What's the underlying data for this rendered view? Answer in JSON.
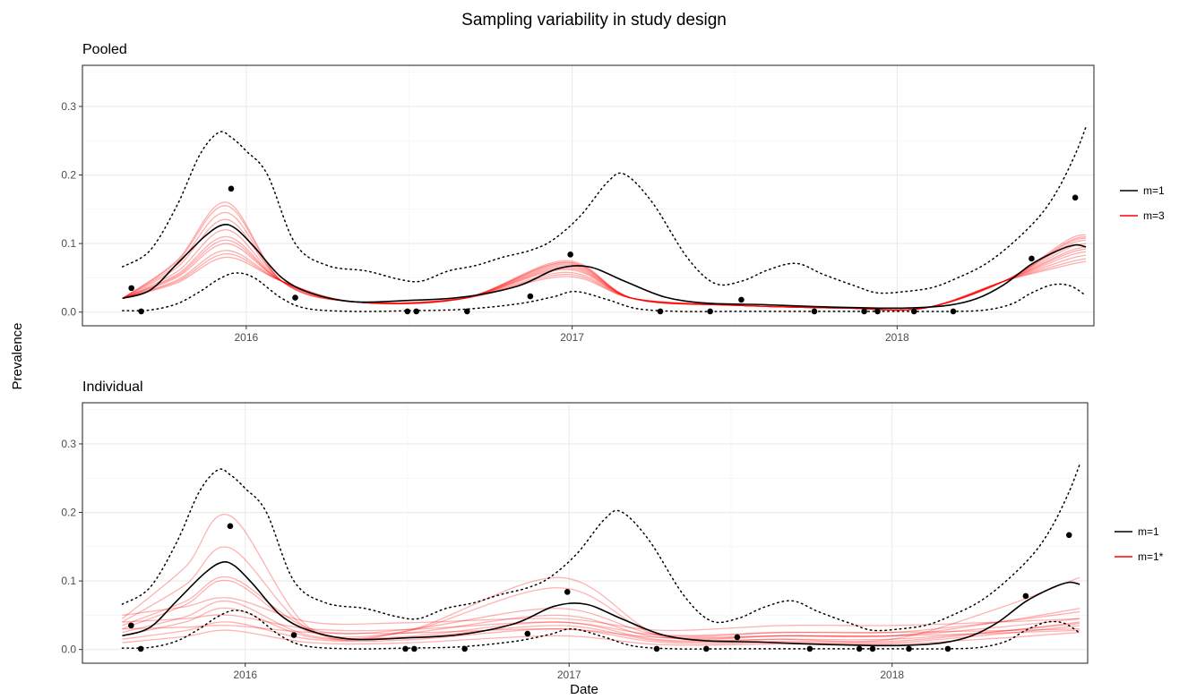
{
  "title": "Sampling variability in study design",
  "ylabel": "Prevalence",
  "xlabel": "Date",
  "colors": {
    "black": "#000000",
    "red": "#ff0000",
    "grid": "#ebebeb"
  },
  "chart_data": [
    {
      "type": "line",
      "panel": "Pooled",
      "xlim": [
        "2015-07-01",
        "2018-08-10"
      ],
      "ylim": [
        -0.02,
        0.36
      ],
      "x_ticks": [
        "2016-01-01",
        "2017-01-01",
        "2018-01-01"
      ],
      "x_tick_labels": [
        "2016",
        "2017",
        "2018"
      ],
      "y_ticks": [
        0.0,
        0.1,
        0.2,
        0.3
      ],
      "y_tick_labels": [
        "0.0",
        "0.1",
        "0.2",
        "0.3"
      ],
      "grid": true,
      "legend": {
        "position": "right",
        "entries": [
          {
            "label": "m=1",
            "color": "#000000"
          },
          {
            "label": "m=3",
            "color": "#ff0000"
          }
        ]
      },
      "points": {
        "x": [
          "2015-08-25",
          "2015-09-05",
          "2015-12-15",
          "2016-02-25",
          "2016-06-30",
          "2016-07-10",
          "2016-09-05",
          "2016-11-15",
          "2016-12-30",
          "2017-04-10",
          "2017-06-05",
          "2017-07-10",
          "2017-09-30",
          "2017-11-25",
          "2017-12-10",
          "2018-01-20",
          "2018-03-05",
          "2018-06-01",
          "2018-07-20"
        ],
        "y": [
          0.035,
          0.001,
          0.18,
          0.021,
          0.001,
          0.001,
          0.001,
          0.023,
          0.084,
          0.001,
          0.001,
          0.018,
          0.001,
          0.001,
          0.001,
          0.001,
          0.001,
          0.078,
          0.167
        ]
      },
      "upper_band": {
        "x": [
          "2015-08-15",
          "2015-09-15",
          "2015-10-15",
          "2015-11-10",
          "2015-12-01",
          "2015-12-15",
          "2016-01-01",
          "2016-01-25",
          "2016-02-25",
          "2016-04-01",
          "2016-05-15",
          "2016-06-20",
          "2016-07-15",
          "2016-08-15",
          "2016-09-15",
          "2016-10-15",
          "2016-11-15",
          "2016-12-10",
          "2017-01-10",
          "2017-02-10",
          "2017-03-01",
          "2017-04-01",
          "2017-05-10",
          "2017-06-10",
          "2017-07-10",
          "2017-08-10",
          "2017-09-10",
          "2017-10-10",
          "2017-11-15",
          "2017-12-10",
          "2018-01-10",
          "2018-02-10",
          "2018-03-10",
          "2018-04-10",
          "2018-05-10",
          "2018-06-10",
          "2018-07-01",
          "2018-07-20",
          "2018-08-01"
        ],
        "y": [
          0.066,
          0.09,
          0.155,
          0.23,
          0.262,
          0.255,
          0.235,
          0.2,
          0.1,
          0.068,
          0.06,
          0.048,
          0.045,
          0.06,
          0.068,
          0.08,
          0.09,
          0.105,
          0.14,
          0.19,
          0.201,
          0.16,
          0.08,
          0.042,
          0.045,
          0.062,
          0.071,
          0.055,
          0.038,
          0.028,
          0.03,
          0.036,
          0.05,
          0.07,
          0.1,
          0.14,
          0.18,
          0.23,
          0.27
        ]
      },
      "lower_band": {
        "x": [
          "2015-08-15",
          "2015-09-15",
          "2015-10-15",
          "2015-11-10",
          "2015-12-01",
          "2015-12-20",
          "2016-01-10",
          "2016-02-10",
          "2016-03-10",
          "2016-05-01",
          "2016-07-01",
          "2016-09-01",
          "2016-11-01",
          "2016-12-10",
          "2017-01-05",
          "2017-02-10",
          "2017-03-15",
          "2017-05-01",
          "2017-07-01",
          "2017-10-01",
          "2018-01-01",
          "2018-03-01",
          "2018-04-10",
          "2018-05-10",
          "2018-06-01",
          "2018-06-25",
          "2018-07-15",
          "2018-08-01"
        ],
        "y": [
          0.002,
          0.003,
          0.012,
          0.03,
          0.048,
          0.057,
          0.05,
          0.02,
          0.005,
          0.001,
          0.002,
          0.004,
          0.012,
          0.022,
          0.03,
          0.018,
          0.005,
          0.001,
          0.001,
          0.001,
          0.001,
          0.001,
          0.003,
          0.012,
          0.028,
          0.04,
          0.038,
          0.024
        ]
      },
      "series": [
        {
          "name": "m=1",
          "color": "#000000",
          "x": [
            "2015-08-15",
            "2015-09-15",
            "2015-10-15",
            "2015-11-15",
            "2015-12-05",
            "2015-12-20",
            "2016-01-10",
            "2016-02-10",
            "2016-03-15",
            "2016-05-01",
            "2016-07-01",
            "2016-09-01",
            "2016-11-01",
            "2016-12-15",
            "2017-01-20",
            "2017-03-01",
            "2017-04-15",
            "2017-06-01",
            "2017-08-01",
            "2017-10-01",
            "2017-12-01",
            "2018-01-15",
            "2018-02-28",
            "2018-04-01",
            "2018-05-01",
            "2018-06-01",
            "2018-07-01",
            "2018-07-20",
            "2018-08-01"
          ],
          "y": [
            0.02,
            0.032,
            0.07,
            0.11,
            0.127,
            0.122,
            0.095,
            0.05,
            0.027,
            0.015,
            0.017,
            0.022,
            0.038,
            0.063,
            0.066,
            0.045,
            0.022,
            0.013,
            0.011,
            0.008,
            0.006,
            0.006,
            0.01,
            0.02,
            0.04,
            0.07,
            0.09,
            0.098,
            0.095
          ]
        },
        {
          "name": "m=3",
          "color": "#ff0000",
          "draws_peak_2016": [
            0.16,
            0.155,
            0.145,
            0.135,
            0.12,
            0.11,
            0.105,
            0.1,
            0.09,
            0.085,
            0.08
          ],
          "draws_peak_2017": [
            0.075,
            0.073,
            0.072,
            0.07,
            0.068,
            0.066,
            0.064,
            0.062,
            0.058,
            0.055,
            0.052
          ],
          "draws_end_2018": [
            0.113,
            0.11,
            0.108,
            0.105,
            0.1,
            0.095,
            0.092,
            0.088,
            0.083,
            0.078,
            0.074
          ]
        }
      ]
    },
    {
      "type": "line",
      "panel": "Individual",
      "xlim": [
        "2015-07-01",
        "2018-08-10"
      ],
      "ylim": [
        -0.02,
        0.36
      ],
      "x_ticks": [
        "2016-01-01",
        "2017-01-01",
        "2018-01-01"
      ],
      "x_tick_labels": [
        "2016",
        "2017",
        "2018"
      ],
      "y_ticks": [
        0.0,
        0.1,
        0.2,
        0.3
      ],
      "y_tick_labels": [
        "0.0",
        "0.1",
        "0.2",
        "0.3"
      ],
      "grid": true,
      "legend": {
        "position": "right",
        "entries": [
          {
            "label": "m=1",
            "color": "#000000"
          },
          {
            "label": "m=1*",
            "color": "#ff0000"
          }
        ]
      },
      "points": {
        "x": [
          "2015-08-25",
          "2015-09-05",
          "2015-12-15",
          "2016-02-25",
          "2016-06-30",
          "2016-07-10",
          "2016-09-05",
          "2016-11-15",
          "2016-12-30",
          "2017-04-10",
          "2017-06-05",
          "2017-07-10",
          "2017-09-30",
          "2017-11-25",
          "2017-12-10",
          "2018-01-20",
          "2018-03-05",
          "2018-06-01",
          "2018-07-20"
        ],
        "y": [
          0.035,
          0.001,
          0.18,
          0.021,
          0.001,
          0.001,
          0.001,
          0.023,
          0.084,
          0.001,
          0.001,
          0.018,
          0.001,
          0.001,
          0.001,
          0.001,
          0.001,
          0.078,
          0.167
        ]
      },
      "upper_band": {
        "x": [
          "2015-08-15",
          "2015-09-15",
          "2015-10-15",
          "2015-11-10",
          "2015-12-01",
          "2015-12-15",
          "2016-01-01",
          "2016-01-25",
          "2016-02-25",
          "2016-04-01",
          "2016-05-15",
          "2016-06-20",
          "2016-07-15",
          "2016-08-15",
          "2016-09-15",
          "2016-10-15",
          "2016-11-15",
          "2016-12-10",
          "2017-01-10",
          "2017-02-10",
          "2017-03-01",
          "2017-04-01",
          "2017-05-10",
          "2017-06-10",
          "2017-07-10",
          "2017-08-10",
          "2017-09-10",
          "2017-10-10",
          "2017-11-15",
          "2017-12-10",
          "2018-01-10",
          "2018-02-10",
          "2018-03-10",
          "2018-04-10",
          "2018-05-10",
          "2018-06-10",
          "2018-07-01",
          "2018-07-20",
          "2018-08-01"
        ],
        "y": [
          0.066,
          0.09,
          0.155,
          0.23,
          0.262,
          0.255,
          0.235,
          0.2,
          0.1,
          0.068,
          0.06,
          0.048,
          0.045,
          0.06,
          0.068,
          0.08,
          0.09,
          0.105,
          0.14,
          0.19,
          0.201,
          0.16,
          0.08,
          0.042,
          0.045,
          0.062,
          0.071,
          0.055,
          0.038,
          0.028,
          0.03,
          0.036,
          0.05,
          0.07,
          0.1,
          0.14,
          0.18,
          0.23,
          0.27
        ]
      },
      "lower_band": {
        "x": [
          "2015-08-15",
          "2015-09-15",
          "2015-10-15",
          "2015-11-10",
          "2015-12-01",
          "2015-12-20",
          "2016-01-10",
          "2016-02-10",
          "2016-03-10",
          "2016-05-01",
          "2016-07-01",
          "2016-09-01",
          "2016-11-01",
          "2016-12-10",
          "2017-01-05",
          "2017-02-10",
          "2017-03-15",
          "2017-05-01",
          "2017-07-01",
          "2017-10-01",
          "2018-01-01",
          "2018-03-01",
          "2018-04-10",
          "2018-05-10",
          "2018-06-01",
          "2018-06-25",
          "2018-07-15",
          "2018-08-01"
        ],
        "y": [
          0.002,
          0.003,
          0.012,
          0.03,
          0.048,
          0.057,
          0.05,
          0.02,
          0.005,
          0.001,
          0.002,
          0.004,
          0.012,
          0.022,
          0.03,
          0.018,
          0.005,
          0.001,
          0.001,
          0.001,
          0.001,
          0.001,
          0.003,
          0.012,
          0.028,
          0.04,
          0.038,
          0.024
        ]
      },
      "series": [
        {
          "name": "m=1",
          "color": "#000000",
          "x": [
            "2015-08-15",
            "2015-09-15",
            "2015-10-15",
            "2015-11-15",
            "2015-12-05",
            "2015-12-20",
            "2016-01-10",
            "2016-02-10",
            "2016-03-15",
            "2016-05-01",
            "2016-07-01",
            "2016-09-01",
            "2016-11-01",
            "2016-12-15",
            "2017-01-20",
            "2017-03-01",
            "2017-04-15",
            "2017-06-01",
            "2017-08-01",
            "2017-10-01",
            "2017-12-01",
            "2018-01-15",
            "2018-02-28",
            "2018-04-01",
            "2018-05-01",
            "2018-06-01",
            "2018-07-01",
            "2018-07-20",
            "2018-08-01"
          ],
          "y": [
            0.02,
            0.032,
            0.07,
            0.11,
            0.127,
            0.122,
            0.095,
            0.05,
            0.027,
            0.015,
            0.017,
            0.022,
            0.038,
            0.063,
            0.066,
            0.045,
            0.022,
            0.013,
            0.011,
            0.008,
            0.006,
            0.006,
            0.01,
            0.02,
            0.04,
            0.07,
            0.09,
            0.098,
            0.095
          ]
        },
        {
          "name": "m=1*",
          "color": "#ff0000",
          "draws": [
            {
              "start": 0.045,
              "peak2016": 0.195,
              "mid": 0.03,
              "peak2017": 0.105,
              "low": 0.015,
              "end": 0.105
            },
            {
              "start": 0.04,
              "peak2016": 0.148,
              "mid": 0.028,
              "peak2017": 0.09,
              "low": 0.02,
              "end": 0.06
            },
            {
              "start": 0.035,
              "peak2016": 0.105,
              "mid": 0.03,
              "peak2017": 0.06,
              "low": 0.025,
              "end": 0.055
            },
            {
              "start": 0.03,
              "peak2016": 0.1,
              "mid": 0.025,
              "peak2017": 0.05,
              "low": 0.02,
              "end": 0.045
            },
            {
              "start": 0.05,
              "peak2016": 0.075,
              "mid": 0.04,
              "peak2017": 0.045,
              "low": 0.035,
              "end": 0.045
            },
            {
              "start": 0.025,
              "peak2016": 0.07,
              "mid": 0.02,
              "peak2017": 0.04,
              "low": 0.015,
              "end": 0.038
            },
            {
              "start": 0.02,
              "peak2016": 0.06,
              "mid": 0.018,
              "peak2017": 0.035,
              "low": 0.012,
              "end": 0.04
            },
            {
              "start": 0.04,
              "peak2016": 0.05,
              "mid": 0.03,
              "peak2017": 0.04,
              "low": 0.025,
              "end": 0.03
            },
            {
              "start": 0.015,
              "peak2016": 0.04,
              "mid": 0.015,
              "peak2017": 0.03,
              "low": 0.01,
              "end": 0.035
            },
            {
              "start": 0.03,
              "peak2016": 0.035,
              "mid": 0.025,
              "peak2017": 0.03,
              "low": 0.02,
              "end": 0.028
            },
            {
              "start": 0.01,
              "peak2016": 0.028,
              "mid": 0.01,
              "peak2017": 0.02,
              "low": 0.008,
              "end": 0.025
            }
          ]
        }
      ]
    }
  ]
}
